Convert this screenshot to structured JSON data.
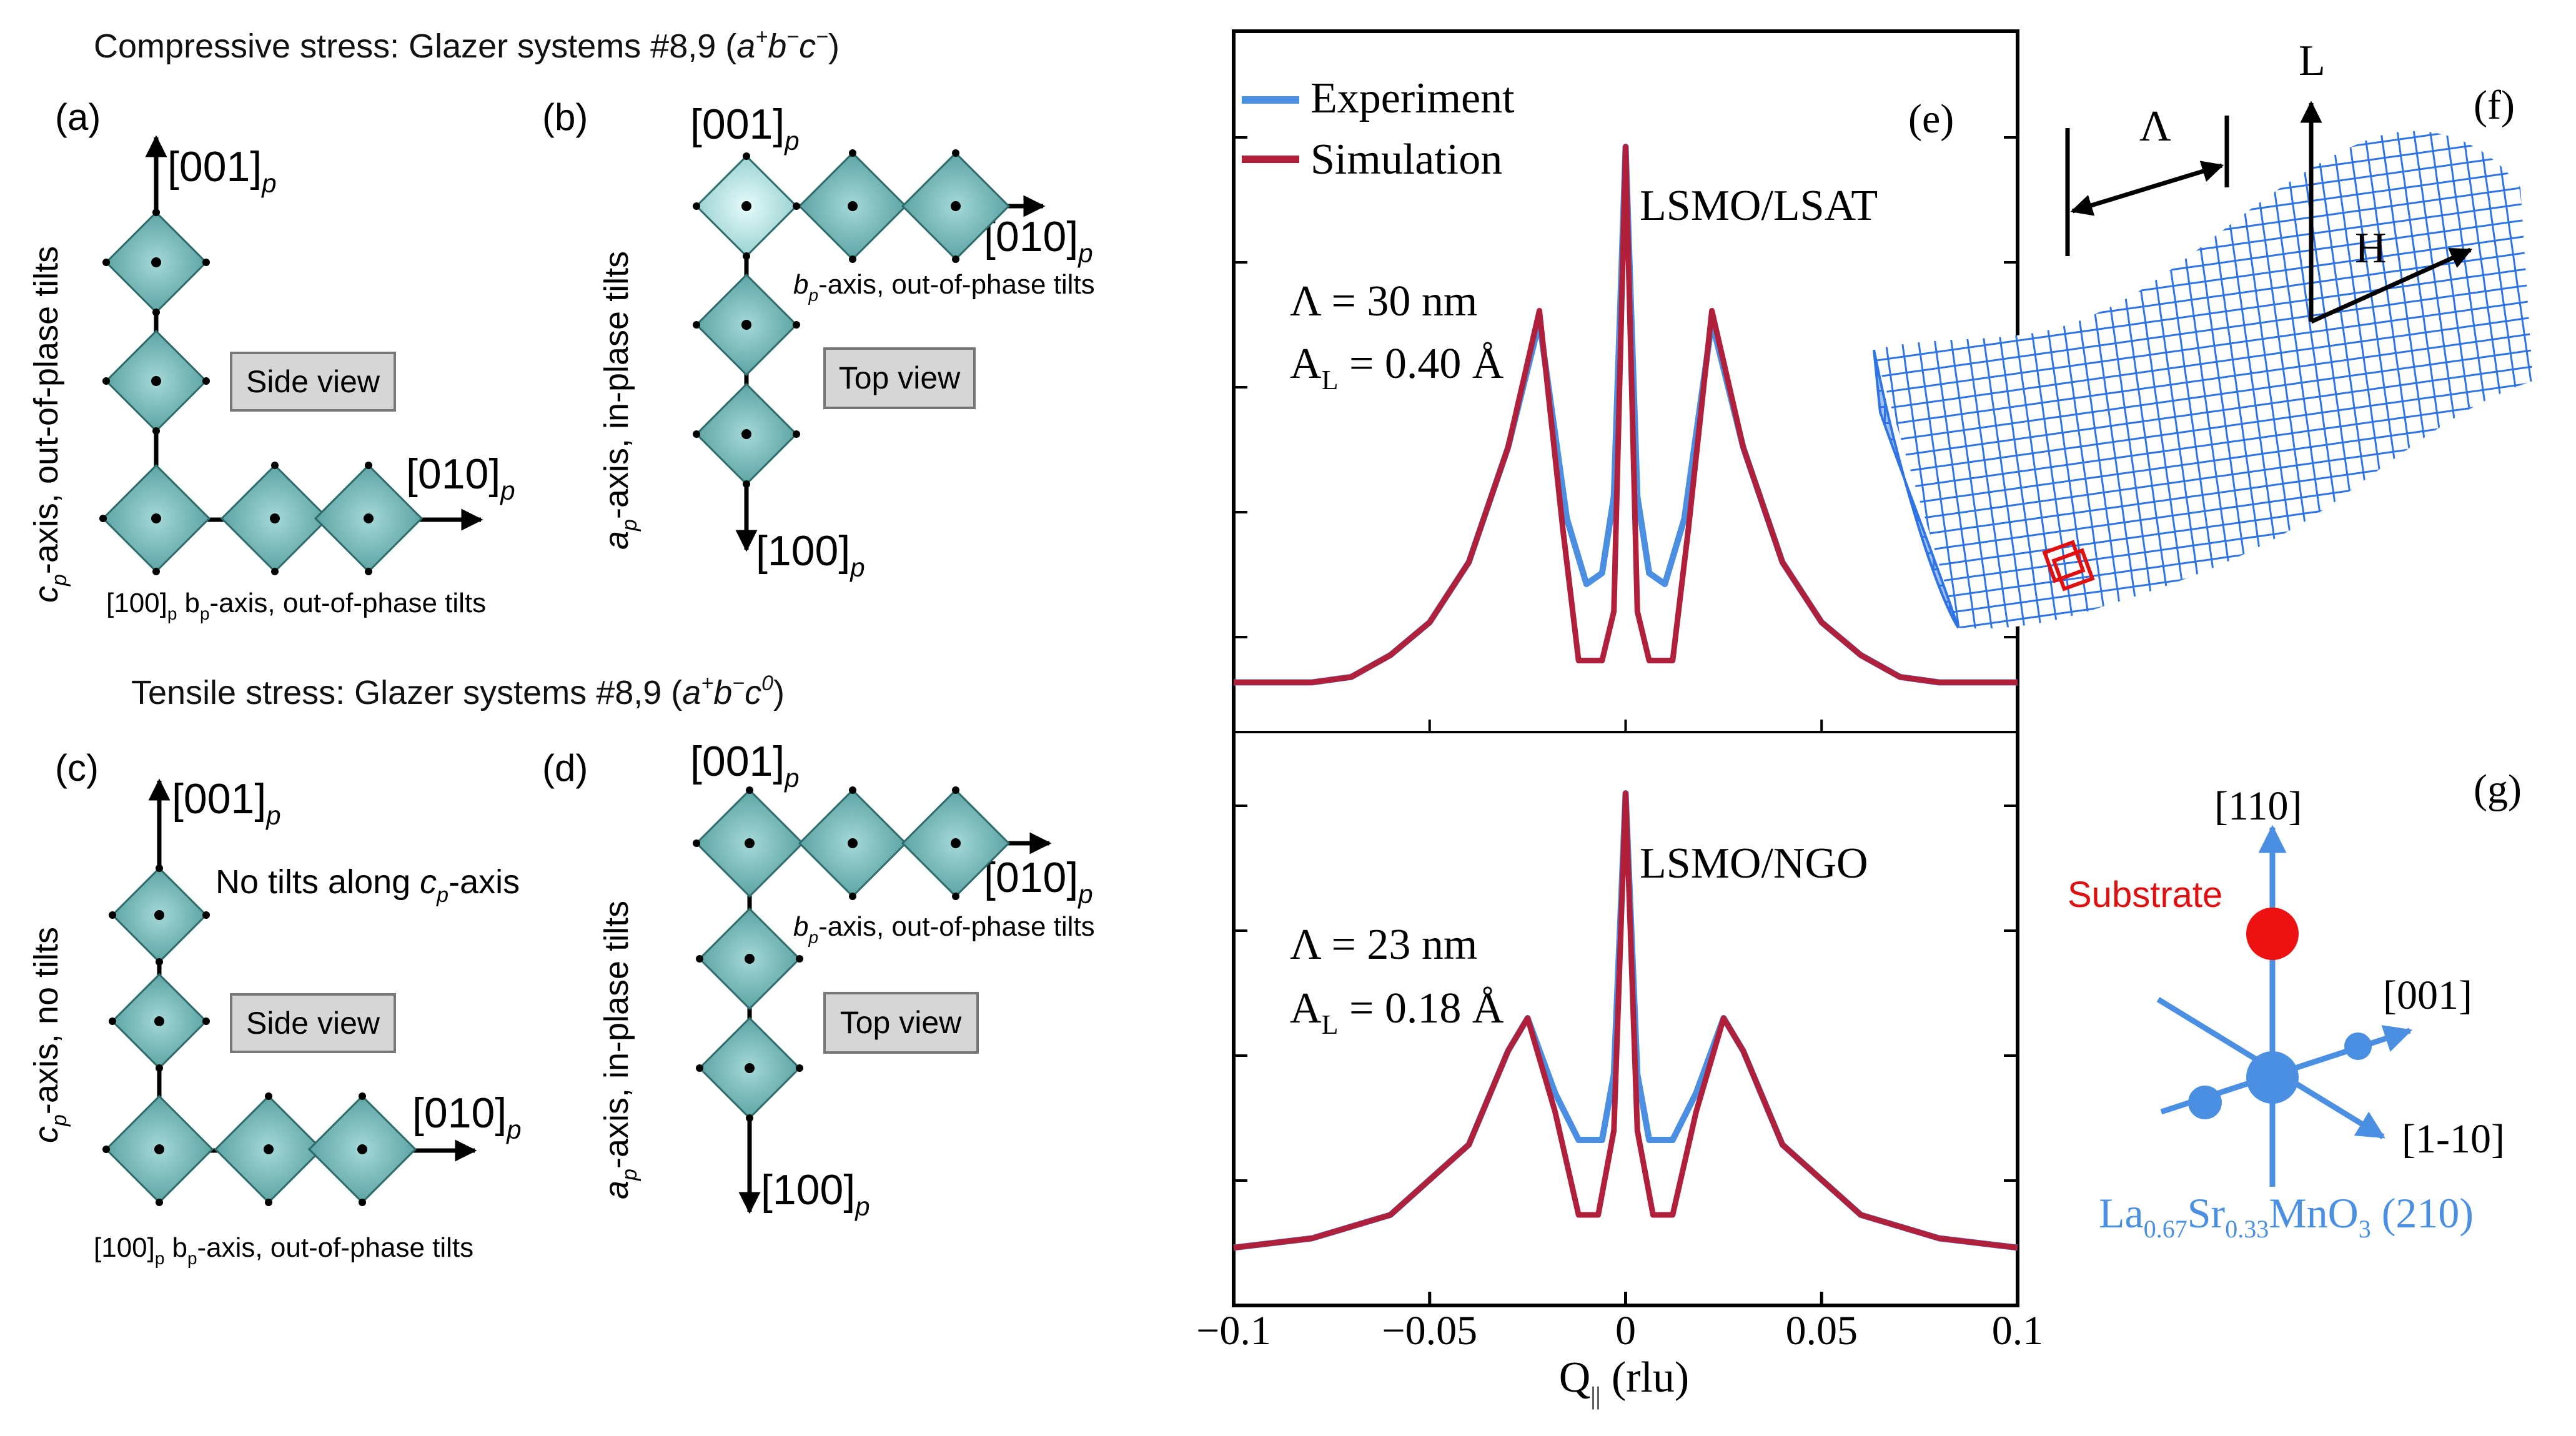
{
  "panel_labels": {
    "a": "(a)",
    "b": "(b)",
    "c": "(c)",
    "d": "(d)",
    "e": "(e)",
    "f": "(f)",
    "g": "(g)"
  },
  "compressive": {
    "prefix": "Compressive stress: Glazer systems #8,9 (",
    "tilt_a": "a",
    "sup_a": "+",
    "tilt_b": "b",
    "sup_b": "−",
    "tilt_c": "c",
    "sup_c": "−",
    "suffix": ")"
  },
  "tensile": {
    "prefix": "Tensile stress: Glazer systems #8,9 (",
    "tilt_a": "a",
    "sup_a": "+",
    "tilt_b": "b",
    "sup_b": "−",
    "tilt_c": "c",
    "sup_c": "0",
    "suffix": ")"
  },
  "axes": {
    "dir001": "[001]",
    "dir010": "[010]",
    "dir100": "[100]",
    "sub_p": "p"
  },
  "panel_a": {
    "vlabel_main": "c",
    "vlabel_sub": "p",
    "vlabel_rest": "-axis, out-of-plase tilts",
    "view": "Side view",
    "bottom_100": "[100]",
    "bottom_sub": "p",
    "bottom_b": "b",
    "bottom_b_sub": "p",
    "bottom_rest": "-axis, out-of-phase tilts"
  },
  "panel_b": {
    "vlabel_main": "a",
    "vlabel_sub": "p",
    "vlabel_rest": "-axis, in-plase tilts",
    "hlabel_main": "b",
    "hlabel_sub": "p",
    "hlabel_rest": "-axis, out-of-phase tilts",
    "view": "Top view"
  },
  "panel_c": {
    "vlabel_main": "c",
    "vlabel_sub": "p",
    "vlabel_rest": "-axis, no tilts",
    "note_prefix": "No tilts along ",
    "note_c": "c",
    "note_sub": "p",
    "note_suffix": "-axis",
    "view": "Side view",
    "bottom_100": "[100]",
    "bottom_sub": "p",
    "bottom_b": "b",
    "bottom_b_sub": "p",
    "bottom_rest": "-axis, out-of-phase tilts"
  },
  "panel_d": {
    "vlabel_main": "a",
    "vlabel_sub": "p",
    "vlabel_rest": "-axis, in-plase tilts",
    "hlabel_main": "b",
    "hlabel_sub": "p",
    "hlabel_rest": "-axis, out-of-phase tilts",
    "view": "Top view"
  },
  "panel_f": {
    "lambda": "Λ",
    "L": "L",
    "H": "H"
  },
  "panel_g": {
    "dir110": "[110]",
    "dir001": "[001]",
    "dir1m10": "[1-10]",
    "substrate": "Substrate",
    "formula": {
      "la": "La",
      "la_sub": "0.67",
      "sr": "Sr",
      "sr_sub": "0.33",
      "mno": "MnO",
      "o_sub": "3",
      "plane": " (210)"
    }
  },
  "colors": {
    "experiment": "#4b8fe2",
    "simulation": "#b0203a",
    "octahedron": "#4f9a9a",
    "mesh": "#2f74e6",
    "substrate_dot": "#ee1111"
  },
  "chart_data": {
    "type": "line",
    "xlabel_main": "Q",
    "xlabel_sub": "||",
    "xlabel_rest": " (rlu)",
    "xlim": [
      -0.1,
      0.1
    ],
    "xticks": [
      "−0.1",
      "−0.05",
      "0",
      "0.05",
      "0.1"
    ],
    "xtick_values": [
      -0.1,
      -0.05,
      0,
      0.05,
      0.1
    ],
    "legend": [
      "Experiment",
      "Simulation"
    ],
    "panels": [
      {
        "sample": "LSMO/LSAT",
        "lambda_label": "Λ = 30 nm",
        "amp_main": "A",
        "amp_sub": "L",
        "amp_rest": " = 0.40 Å",
        "series": [
          {
            "name": "Experiment",
            "x": [
              -0.1,
              -0.08,
              -0.07,
              -0.06,
              -0.05,
              -0.04,
              -0.03,
              -0.022,
              -0.015,
              -0.01,
              -0.006,
              -0.003,
              0,
              0.003,
              0.006,
              0.01,
              0.015,
              0.022,
              0.03,
              0.04,
              0.05,
              0.06,
              0.07,
              0.08,
              0.1
            ],
            "y": [
              0.02,
              0.02,
              0.03,
              0.07,
              0.13,
              0.24,
              0.45,
              0.68,
              0.32,
              0.2,
              0.22,
              0.36,
              1.0,
              0.36,
              0.22,
              0.2,
              0.32,
              0.68,
              0.45,
              0.24,
              0.13,
              0.07,
              0.03,
              0.02,
              0.02
            ]
          },
          {
            "name": "Simulation",
            "x": [
              -0.1,
              -0.08,
              -0.07,
              -0.06,
              -0.05,
              -0.04,
              -0.03,
              -0.022,
              -0.016,
              -0.012,
              -0.006,
              -0.003,
              0,
              0.003,
              0.006,
              0.012,
              0.016,
              0.022,
              0.03,
              0.04,
              0.05,
              0.06,
              0.07,
              0.08,
              0.1
            ],
            "y": [
              0.02,
              0.02,
              0.03,
              0.07,
              0.13,
              0.24,
              0.45,
              0.7,
              0.3,
              0.06,
              0.06,
              0.15,
              1.0,
              0.15,
              0.06,
              0.06,
              0.3,
              0.7,
              0.45,
              0.24,
              0.13,
              0.07,
              0.03,
              0.02,
              0.02
            ]
          }
        ]
      },
      {
        "sample": "LSMO/NGO",
        "lambda_label": "Λ = 23 nm",
        "amp_main": "A",
        "amp_sub": "L",
        "amp_rest": " = 0.18 Å",
        "series": [
          {
            "name": "Experiment",
            "x": [
              -0.1,
              -0.08,
              -0.06,
              -0.04,
              -0.03,
              -0.025,
              -0.018,
              -0.012,
              -0.006,
              -0.003,
              0,
              0.003,
              0.006,
              0.012,
              0.018,
              0.025,
              0.03,
              0.04,
              0.06,
              0.08,
              0.1
            ],
            "y": [
              0.03,
              0.05,
              0.1,
              0.25,
              0.45,
              0.52,
              0.36,
              0.26,
              0.26,
              0.4,
              1.0,
              0.4,
              0.26,
              0.26,
              0.36,
              0.52,
              0.45,
              0.25,
              0.1,
              0.05,
              0.03
            ]
          },
          {
            "name": "Simulation",
            "x": [
              -0.1,
              -0.08,
              -0.06,
              -0.04,
              -0.03,
              -0.025,
              -0.018,
              -0.012,
              -0.007,
              -0.003,
              0,
              0.003,
              0.007,
              0.012,
              0.018,
              0.025,
              0.03,
              0.04,
              0.06,
              0.08,
              0.1
            ],
            "y": [
              0.03,
              0.05,
              0.1,
              0.25,
              0.45,
              0.52,
              0.32,
              0.1,
              0.1,
              0.28,
              1.0,
              0.28,
              0.1,
              0.1,
              0.32,
              0.52,
              0.45,
              0.25,
              0.1,
              0.05,
              0.03
            ]
          }
        ]
      }
    ]
  }
}
